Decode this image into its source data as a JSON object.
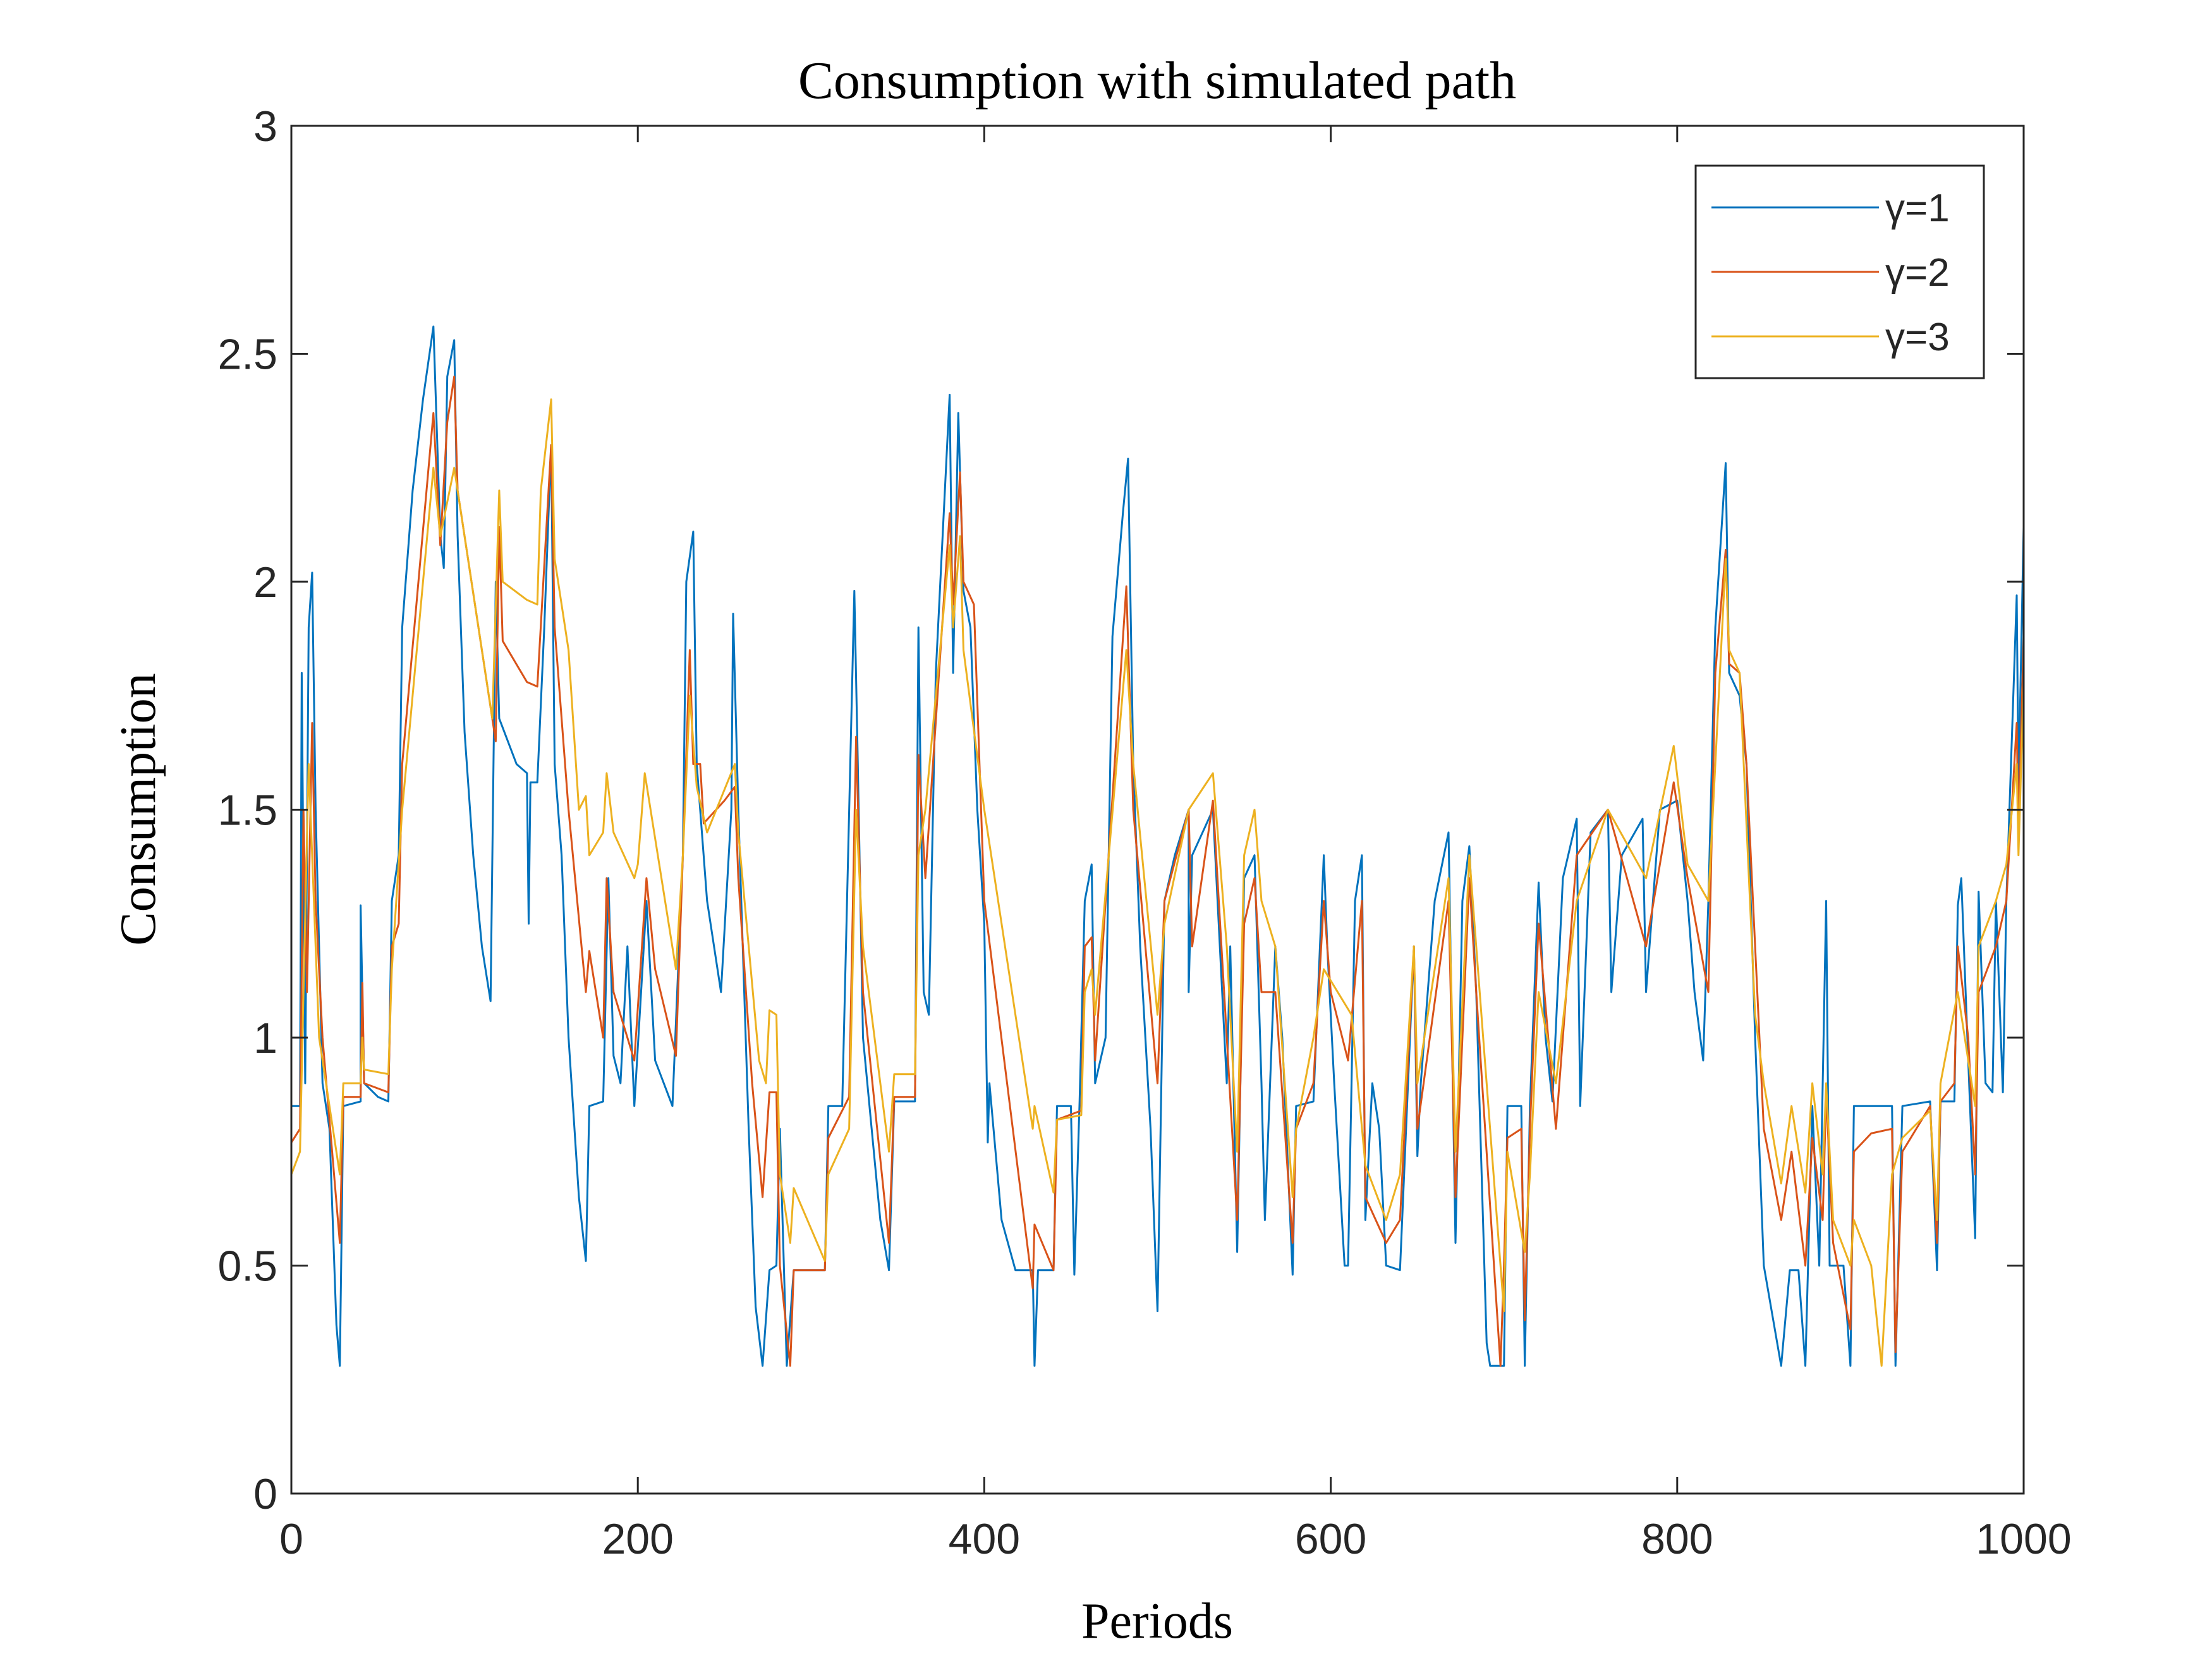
{
  "chart_data": {
    "type": "line",
    "title": "Consumption with simulated path",
    "xlabel": "Periods",
    "ylabel": "Consumption",
    "xlim": [
      0,
      1000
    ],
    "xticks": [
      0,
      200,
      400,
      600,
      800,
      1000
    ],
    "ylim": [
      0,
      3
    ],
    "yticks": [
      0,
      0.5,
      1,
      1.5,
      2,
      2.5,
      3
    ],
    "legend": "upper right",
    "series": [
      {
        "name": "γ=1",
        "color": "#0072BD",
        "x": [
          0,
          5,
          6,
          8,
          10,
          12,
          14,
          16,
          18,
          22,
          26,
          28,
          30,
          40,
          40,
          42,
          50,
          56,
          58,
          62,
          64,
          70,
          76,
          82,
          86,
          88,
          90,
          94,
          96,
          100,
          105,
          110,
          115,
          118,
          120,
          130,
          136,
          137,
          138,
          142,
          146,
          150,
          152,
          156,
          160,
          166,
          170,
          172,
          180,
          183,
          186,
          190,
          194,
          198,
          205,
          210,
          220,
          226,
          228,
          232,
          234,
          240,
          248,
          254,
          255,
          258,
          264,
          268,
          272,
          276,
          280,
          282,
          286,
          290,
          308,
          310,
          318,
          325,
          327,
          330,
          340,
          345,
          348,
          360,
          362,
          365,
          368,
          372,
          380,
          382,
          385,
          388,
          392,
          396,
          400,
          402,
          403,
          410,
          418,
          428,
          429,
          431,
          440,
          442,
          450,
          452,
          455,
          458,
          462,
          464,
          470,
          474,
          480,
          483,
          486,
          490,
          496,
          500,
          504,
          510,
          518,
          518,
          520,
          532,
          540,
          542,
          546,
          550,
          556,
          560,
          562,
          568,
          572,
          578,
          580,
          590,
          596,
          598,
          602,
          608,
          610,
          614,
          618,
          620,
          624,
          628,
          632,
          640,
          648,
          650,
          652,
          660,
          668,
          672,
          676,
          680,
          684,
          690,
          692,
          700,
          702,
          710,
          712,
          715,
          720,
          724,
          728,
          734,
          742,
          744,
          750,
          760,
          762,
          768,
          780,
          782,
          790,
          800,
          806,
          810,
          815,
          818,
          822,
          828,
          830,
          836,
          840,
          845,
          850,
          860,
          865,
          870,
          874,
          878,
          882,
          886,
          888,
          896,
          900,
          902,
          912,
          924,
          926,
          930,
          946,
          950,
          952,
          960,
          962,
          964,
          968,
          972,
          974,
          978,
          982,
          984,
          988,
          990,
          996,
          997,
          1000
        ],
        "values": [
          0.85,
          0.85,
          1.8,
          0.9,
          1.9,
          2.02,
          1.5,
          1.2,
          0.9,
          0.8,
          0.37,
          0.28,
          0.85,
          0.86,
          1.29,
          0.9,
          0.87,
          0.86,
          1.3,
          1.4,
          1.9,
          2.2,
          2.4,
          2.56,
          2.1,
          2.03,
          2.45,
          2.53,
          2.1,
          1.67,
          1.4,
          1.2,
          1.08,
          2.0,
          1.7,
          1.6,
          1.58,
          1.25,
          1.56,
          1.56,
          1.9,
          2.3,
          1.6,
          1.4,
          1.0,
          0.65,
          0.51,
          0.85,
          0.86,
          1.35,
          0.96,
          0.9,
          1.2,
          0.85,
          1.3,
          0.95,
          0.85,
          1.4,
          2.0,
          2.11,
          1.6,
          1.3,
          1.1,
          1.5,
          1.93,
          1.5,
          0.8,
          0.41,
          0.28,
          0.49,
          0.5,
          0.8,
          0.28,
          0.49,
          0.49,
          0.85,
          0.85,
          1.98,
          1.6,
          1.0,
          0.6,
          0.49,
          0.86,
          0.86,
          1.9,
          1.1,
          1.05,
          1.8,
          2.41,
          1.8,
          2.37,
          1.98,
          1.9,
          1.5,
          1.25,
          0.77,
          0.9,
          0.6,
          0.49,
          0.49,
          0.28,
          0.49,
          0.49,
          0.85,
          0.85,
          0.48,
          0.86,
          1.3,
          1.38,
          0.9,
          1.0,
          1.88,
          2.15,
          2.27,
          1.6,
          1.2,
          0.8,
          0.4,
          1.3,
          1.4,
          1.5,
          1.1,
          1.4,
          1.5,
          0.9,
          1.2,
          0.53,
          1.35,
          1.4,
          0.9,
          0.6,
          1.2,
          1.0,
          0.48,
          0.85,
          0.86,
          1.4,
          1.2,
          0.9,
          0.5,
          0.5,
          1.3,
          1.4,
          0.6,
          0.9,
          0.8,
          0.5,
          0.49,
          1.2,
          0.74,
          0.9,
          1.3,
          1.45,
          0.55,
          1.3,
          1.42,
          1.1,
          0.33,
          0.28,
          0.28,
          0.85,
          0.85,
          0.28,
          0.85,
          1.34,
          1.0,
          0.86,
          1.35,
          1.48,
          0.85,
          1.45,
          1.5,
          1.1,
          1.4,
          1.48,
          1.1,
          1.5,
          1.52,
          1.3,
          1.1,
          0.95,
          1.3,
          1.9,
          2.26,
          1.8,
          1.75,
          1.6,
          1.0,
          0.5,
          0.28,
          0.49,
          0.49,
          0.28,
          0.85,
          0.5,
          1.3,
          0.5,
          0.5,
          0.28,
          0.85,
          0.85,
          0.85,
          0.28,
          0.85,
          0.86,
          0.49,
          0.86,
          0.86,
          1.29,
          1.35,
          0.95,
          0.56,
          1.32,
          0.9,
          0.88,
          1.3,
          0.88,
          1.3,
          1.97,
          1.55,
          2.12
        ]
      },
      {
        "name": "γ=2",
        "color": "#D95319",
        "x": [
          0,
          5,
          7,
          9,
          12,
          14,
          18,
          28,
          30,
          40,
          41,
          42,
          56,
          58,
          62,
          64,
          82,
          86,
          90,
          94,
          96,
          118,
          120,
          122,
          136,
          142,
          150,
          152,
          160,
          170,
          172,
          180,
          182,
          186,
          198,
          205,
          210,
          222,
          226,
          230,
          232,
          236,
          238,
          250,
          256,
          258,
          266,
          272,
          276,
          280,
          282,
          288,
          290,
          308,
          310,
          322,
          326,
          330,
          345,
          348,
          360,
          362,
          366,
          380,
          382,
          386,
          388,
          394,
          400,
          428,
          429,
          440,
          442,
          456,
          458,
          462,
          464,
          482,
          486,
          500,
          504,
          518,
          520,
          532,
          540,
          546,
          550,
          556,
          560,
          568,
          578,
          580,
          590,
          596,
          600,
          610,
          618,
          620,
          632,
          640,
          648,
          650,
          668,
          672,
          680,
          684,
          698,
          700,
          702,
          710,
          712,
          715,
          720,
          730,
          742,
          760,
          782,
          798,
          806,
          818,
          822,
          828,
          830,
          836,
          840,
          850,
          860,
          866,
          874,
          878,
          884,
          886,
          890,
          900,
          902,
          912,
          924,
          926,
          930,
          946,
          950,
          952,
          960,
          962,
          968,
          972,
          974,
          984,
          990,
          996,
          997,
          1000
        ],
        "values": [
          0.77,
          0.8,
          1.5,
          1.1,
          1.69,
          1.3,
          1.0,
          0.55,
          0.87,
          0.87,
          1.12,
          0.9,
          0.88,
          1.2,
          1.25,
          1.6,
          2.37,
          2.08,
          2.35,
          2.45,
          2.2,
          1.65,
          2.12,
          1.87,
          1.78,
          1.77,
          2.3,
          1.9,
          1.5,
          1.1,
          1.19,
          1.0,
          1.35,
          1.1,
          0.95,
          1.35,
          1.15,
          0.96,
          1.4,
          1.85,
          1.6,
          1.6,
          1.47,
          1.52,
          1.55,
          1.35,
          0.9,
          0.65,
          0.88,
          0.88,
          0.5,
          0.28,
          0.49,
          0.49,
          0.78,
          0.87,
          1.66,
          1.1,
          0.55,
          0.87,
          0.87,
          1.62,
          1.35,
          2.15,
          1.95,
          2.24,
          2.0,
          1.95,
          1.3,
          0.45,
          0.59,
          0.49,
          0.82,
          0.84,
          1.2,
          1.22,
          0.95,
          1.99,
          1.5,
          0.9,
          1.3,
          1.5,
          1.2,
          1.52,
          1.0,
          0.6,
          1.25,
          1.35,
          1.1,
          1.1,
          0.55,
          0.8,
          0.9,
          1.3,
          1.1,
          0.95,
          1.3,
          0.65,
          0.55,
          0.6,
          1.2,
          0.8,
          1.3,
          0.65,
          1.35,
          1.1,
          0.28,
          0.5,
          0.78,
          0.8,
          0.38,
          0.8,
          1.25,
          0.8,
          1.4,
          1.5,
          1.2,
          1.56,
          1.35,
          1.1,
          1.8,
          2.07,
          1.82,
          1.8,
          1.6,
          0.8,
          0.6,
          0.75,
          0.5,
          0.78,
          0.6,
          0.88,
          0.55,
          0.36,
          0.75,
          0.79,
          0.8,
          0.31,
          0.75,
          0.85,
          0.55,
          0.86,
          0.9,
          1.2,
          1.0,
          0.7,
          1.1,
          1.2,
          1.3,
          1.69,
          1.45,
          1.88
        ]
      },
      {
        "name": "γ=3",
        "color": "#EDB120",
        "x": [
          0,
          5,
          7,
          10,
          12,
          16,
          28,
          30,
          40,
          41,
          42,
          56,
          58,
          64,
          82,
          86,
          94,
          96,
          116,
          120,
          122,
          136,
          142,
          144,
          150,
          152,
          160,
          166,
          170,
          172,
          180,
          182,
          186,
          198,
          200,
          204,
          222,
          226,
          230,
          234,
          240,
          256,
          258,
          270,
          274,
          276,
          280,
          282,
          288,
          290,
          308,
          310,
          322,
          326,
          330,
          345,
          348,
          360,
          362,
          366,
          380,
          382,
          386,
          388,
          400,
          428,
          429,
          440,
          442,
          456,
          458,
          462,
          464,
          482,
          486,
          500,
          504,
          518,
          532,
          540,
          546,
          550,
          556,
          560,
          568,
          578,
          580,
          590,
          596,
          612,
          620,
          632,
          640,
          648,
          650,
          668,
          672,
          680,
          684,
          700,
          702,
          712,
          715,
          720,
          730,
          742,
          760,
          782,
          798,
          806,
          818,
          822,
          828,
          830,
          836,
          845,
          850,
          860,
          866,
          874,
          878,
          884,
          886,
          890,
          900,
          902,
          912,
          918,
          924,
          930,
          946,
          950,
          952,
          962,
          972,
          974,
          984,
          990,
          996,
          997,
          1000
        ],
        "values": [
          0.7,
          0.75,
          1.1,
          1.6,
          1.4,
          1.0,
          0.7,
          0.9,
          0.9,
          1.0,
          0.93,
          0.92,
          1.15,
          1.5,
          2.25,
          2.1,
          2.25,
          2.2,
          1.7,
          2.2,
          2.0,
          1.96,
          1.95,
          2.2,
          2.4,
          2.05,
          1.85,
          1.5,
          1.53,
          1.4,
          1.45,
          1.58,
          1.45,
          1.35,
          1.38,
          1.58,
          1.15,
          1.4,
          1.75,
          1.55,
          1.45,
          1.6,
          1.45,
          0.95,
          0.9,
          1.06,
          1.05,
          0.7,
          0.55,
          0.67,
          0.51,
          0.7,
          0.8,
          1.5,
          1.2,
          0.75,
          0.92,
          0.92,
          1.4,
          1.5,
          2.08,
          1.9,
          2.1,
          1.85,
          1.5,
          0.8,
          0.85,
          0.66,
          0.82,
          0.83,
          1.1,
          1.15,
          1.05,
          1.85,
          1.6,
          1.05,
          1.25,
          1.5,
          1.58,
          1.2,
          0.75,
          1.4,
          1.5,
          1.3,
          1.2,
          0.65,
          0.8,
          1.0,
          1.15,
          1.05,
          0.72,
          0.6,
          0.7,
          1.2,
          0.9,
          1.35,
          0.75,
          1.4,
          1.2,
          0.4,
          0.75,
          0.53,
          0.7,
          1.1,
          0.9,
          1.3,
          1.5,
          1.35,
          1.64,
          1.38,
          1.3,
          1.6,
          2.05,
          1.85,
          1.8,
          1.05,
          0.9,
          0.68,
          0.85,
          0.66,
          0.9,
          0.7,
          0.9,
          0.6,
          0.5,
          0.6,
          0.5,
          0.28,
          0.7,
          0.78,
          0.84,
          0.6,
          0.9,
          1.1,
          0.85,
          1.2,
          1.3,
          1.38,
          1.6,
          1.4,
          1.78
        ]
      }
    ]
  }
}
